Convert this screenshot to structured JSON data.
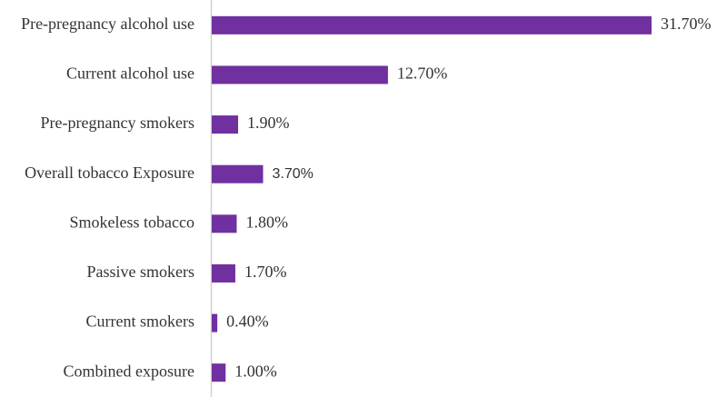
{
  "chart_data": {
    "type": "hbar",
    "categories": [
      "Pre-pregnancy alcohol use",
      "Current alcohol use",
      "Pre-pregnancy smokers",
      "Overall tobacco Exposure",
      "Smokeless tobacco",
      "Passive smokers",
      "Current smokers",
      "Combined exposure"
    ],
    "values": [
      31.7,
      12.7,
      1.9,
      3.7,
      1.8,
      1.7,
      0.4,
      1.0
    ],
    "value_labels": [
      "31.70%",
      "12.70%",
      "1.90%",
      "3.70%",
      "1.80%",
      "1.70%",
      "0.40%",
      "1.00%"
    ],
    "color": "#7030a0"
  }
}
